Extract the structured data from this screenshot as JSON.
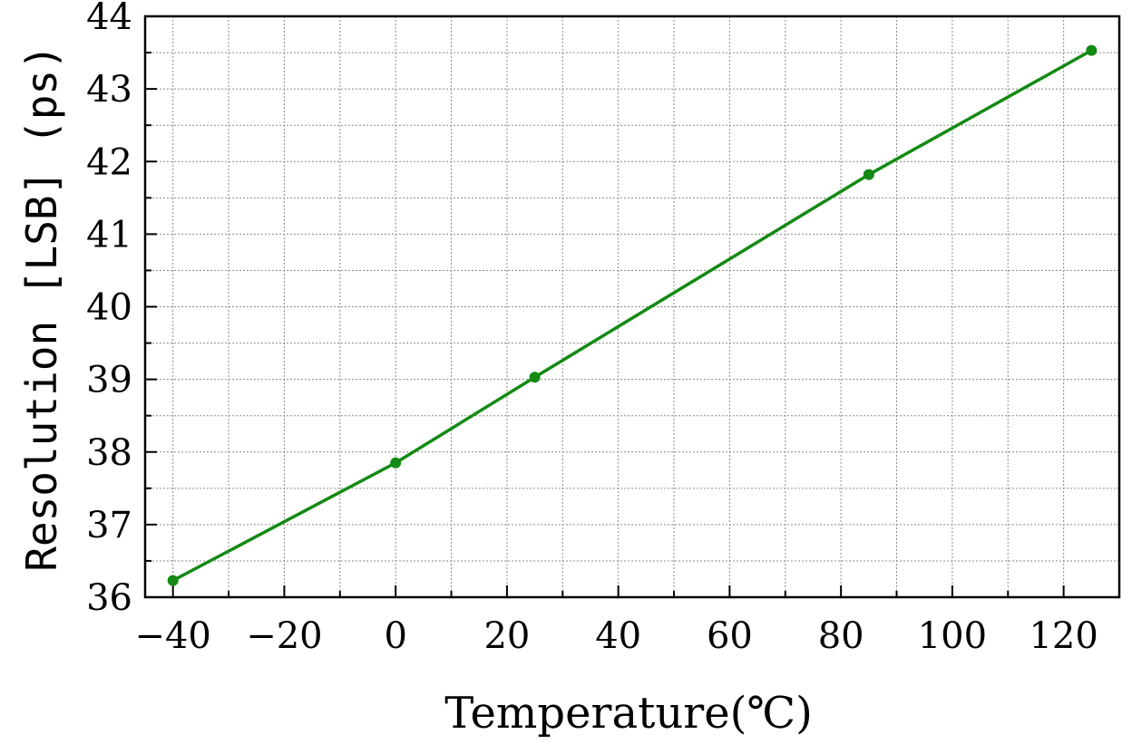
{
  "chart_data": {
    "type": "line",
    "xlabel": "Temperature(℃)",
    "ylabel": "Resolution [LSB] (ps)",
    "xlim": [
      -45,
      130
    ],
    "ylim": [
      36,
      44
    ],
    "x_ticks": [
      -40,
      -20,
      0,
      20,
      40,
      60,
      80,
      100,
      120
    ],
    "x_tick_labels": [
      "−40",
      "−20",
      "0",
      "20",
      "40",
      "60",
      "80",
      "100",
      "120"
    ],
    "y_ticks": [
      36,
      37,
      38,
      39,
      40,
      41,
      42,
      43,
      44
    ],
    "y_tick_labels": [
      "36",
      "37",
      "38",
      "39",
      "40",
      "41",
      "42",
      "43",
      "44"
    ],
    "grid": true,
    "series": [
      {
        "color": "#138a13",
        "x": [
          -40,
          0,
          25,
          85,
          125
        ],
        "y": [
          36.23,
          37.85,
          39.03,
          41.82,
          43.53
        ]
      }
    ]
  }
}
